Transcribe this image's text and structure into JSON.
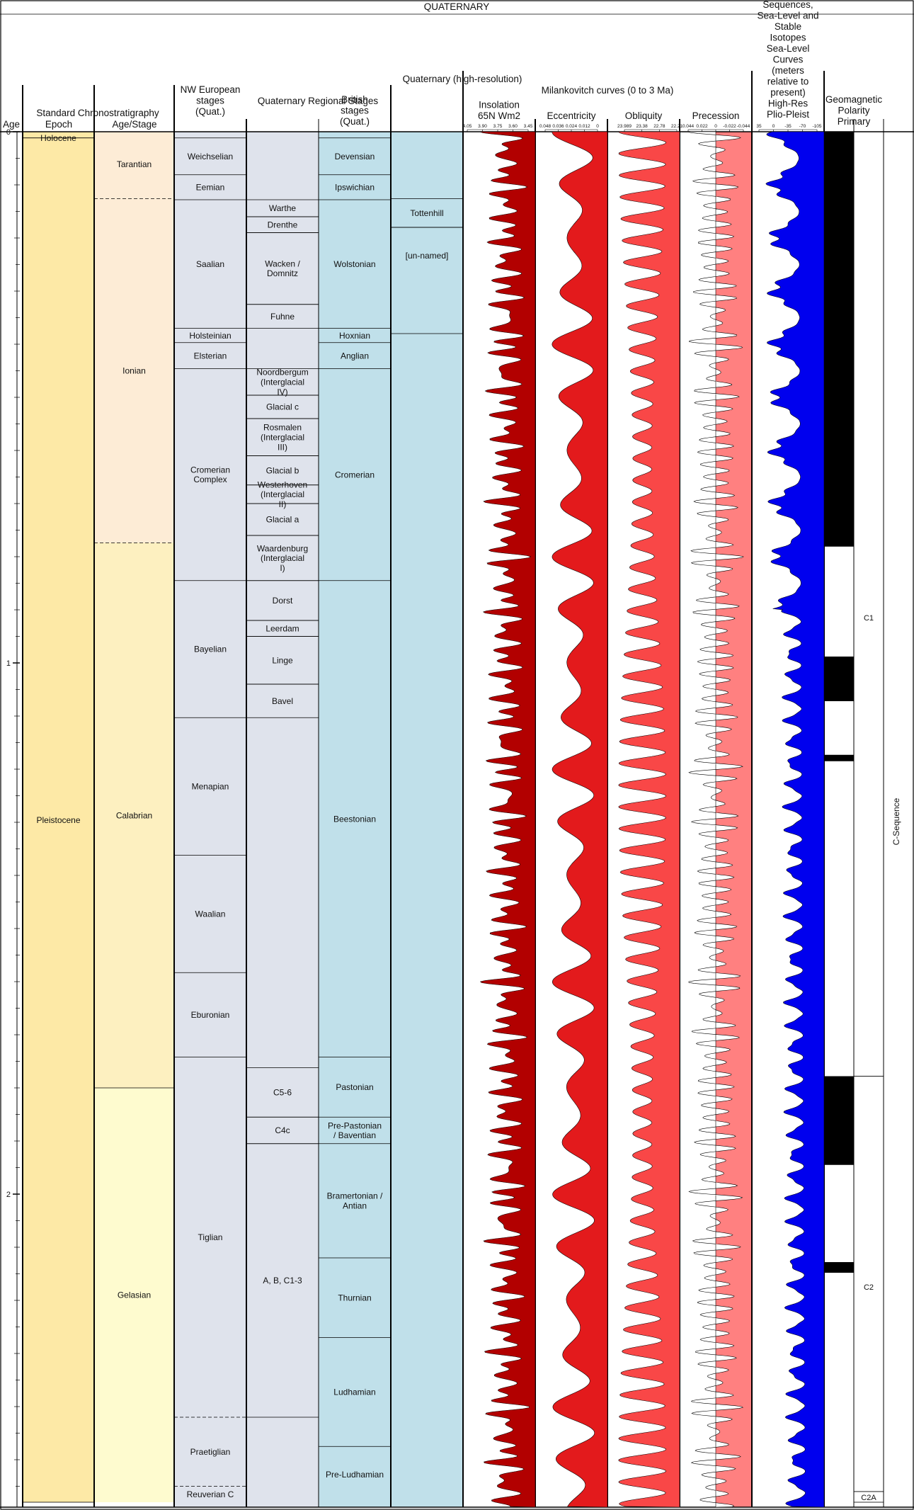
{
  "title": "QUATERNARY",
  "headers": {
    "age": "Age",
    "std_chrono": "Standard Chronostratigraphy",
    "epoch": "Epoch",
    "age_stage": "Age/Stage",
    "nw_european": "NW European stages (Quat.)",
    "regional": "Quaternary Regional Stages",
    "british": "British stages (Quat.)",
    "hires": "Quaternary (high-resolution)",
    "milankovitch": "Milankovitch curves (0 to 3 Ma)",
    "insolation": "Insolation 65N Wm2",
    "eccentricity": "Eccentricity",
    "obliquity": "Obliquity",
    "precession": "Precession",
    "sealevel": "Sequences, Sea-Level and Stable Isotopes Sea-Level Curves (meters relative to present) High-Res Plio-Pleist",
    "geomag": "Geomagnetic Polarity Primary"
  },
  "age_ticks": [
    "0",
    "1",
    "2"
  ],
  "scale_ticks": {
    "insolation": [
      "4.05",
      "3.90",
      "3.75",
      "3.60",
      "3.45"
    ],
    "eccentricity": [
      "0.048",
      "0.036",
      "0.024",
      "0.012",
      "0"
    ],
    "obliquity": [
      "23.989",
      "23.38",
      "22.78",
      "22.21"
    ],
    "precession": [
      "0.044",
      "0.022",
      "0",
      "-0.022",
      "-0.044"
    ],
    "sealevel": [
      "35",
      "0",
      "-35",
      "-70",
      "-105"
    ]
  },
  "epochs": [
    {
      "name": "Holocene",
      "top": 0,
      "base": 0.0117
    },
    {
      "name": "Pleistocene",
      "top": 0.0117,
      "base": 2.58
    }
  ],
  "ages": [
    {
      "name": "Tarantian",
      "top": 0,
      "base": 0.126,
      "color": "#fdecd6"
    },
    {
      "name": "Ionian",
      "top": 0.126,
      "base": 0.774,
      "color": "#fdecd6"
    },
    {
      "name": "Calabrian",
      "top": 0.774,
      "base": 1.8,
      "color": "#fdf0c0"
    },
    {
      "name": "Gelasian",
      "top": 1.8,
      "base": 2.58,
      "color": "#fefbcf"
    }
  ],
  "nw_stages": [
    {
      "name": "",
      "top": 0,
      "base": 0.0117
    },
    {
      "name": "Weichselian",
      "top": 0.0117,
      "base": 0.081
    },
    {
      "name": "Eemian",
      "top": 0.081,
      "base": 0.128
    },
    {
      "name": "Saalian",
      "top": 0.128,
      "base": 0.37
    },
    {
      "name": "Holsteinian",
      "top": 0.37,
      "base": 0.397
    },
    {
      "name": "Elsterian",
      "top": 0.397,
      "base": 0.446
    },
    {
      "name": "Cromerian Complex",
      "top": 0.446,
      "base": 0.845
    },
    {
      "name": "Bayelian",
      "top": 0.845,
      "base": 1.103
    },
    {
      "name": "Menapian",
      "top": 1.103,
      "base": 1.362
    },
    {
      "name": "Waalian",
      "top": 1.362,
      "base": 1.583
    },
    {
      "name": "Eburonian",
      "top": 1.583,
      "base": 1.742
    },
    {
      "name": "Tiglian",
      "top": 1.742,
      "base": 2.42
    },
    {
      "name": "Praetiglian",
      "top": 2.42,
      "base": 2.55
    },
    {
      "name": "Reuverian C",
      "top": 2.55,
      "base": 2.58
    }
  ],
  "regional_substages": [
    {
      "name": "Warthe",
      "top": 0.128,
      "base": 0.16
    },
    {
      "name": "Drenthe",
      "top": 0.16,
      "base": 0.19
    },
    {
      "name": "Wacken / Domnitz",
      "top": 0.19,
      "base": 0.325
    },
    {
      "name": "Fuhne",
      "top": 0.325,
      "base": 0.37
    },
    {
      "name": "Noordbergum (Interglacial IV)",
      "top": 0.446,
      "base": 0.496
    },
    {
      "name": "Glacial c",
      "top": 0.496,
      "base": 0.54
    },
    {
      "name": "Rosmalen (Interglacial III)",
      "top": 0.54,
      "base": 0.61
    },
    {
      "name": "Glacial b",
      "top": 0.61,
      "base": 0.665
    },
    {
      "name": "Westerhoven (Interglacial II)",
      "top": 0.665,
      "base": 0.7
    },
    {
      "name": "Glacial a",
      "top": 0.7,
      "base": 0.76
    },
    {
      "name": "Waardenburg (Interglacial I)",
      "top": 0.76,
      "base": 0.845
    },
    {
      "name": "Dorst",
      "top": 0.845,
      "base": 0.92
    },
    {
      "name": "Leerdam",
      "top": 0.92,
      "base": 0.95
    },
    {
      "name": "Linge",
      "top": 0.95,
      "base": 1.04
    },
    {
      "name": "Bavel",
      "top": 1.04,
      "base": 1.103
    },
    {
      "name": "C5-6",
      "top": 1.762,
      "base": 1.855
    },
    {
      "name": "C4c",
      "top": 1.855,
      "base": 1.905
    },
    {
      "name": "A, B, C1-3",
      "top": 1.905,
      "base": 2.42
    }
  ],
  "british_stages": [
    {
      "name": "",
      "top": 0,
      "base": 0.0117
    },
    {
      "name": "Devensian",
      "top": 0.0117,
      "base": 0.081
    },
    {
      "name": "Ipswichian",
      "top": 0.081,
      "base": 0.128
    },
    {
      "name": "Wolstonian",
      "top": 0.128,
      "base": 0.37
    },
    {
      "name": "Hoxnian",
      "top": 0.37,
      "base": 0.397
    },
    {
      "name": "Anglian",
      "top": 0.397,
      "base": 0.446
    },
    {
      "name": "Cromerian",
      "top": 0.446,
      "base": 0.845
    },
    {
      "name": "Beestonian",
      "top": 0.845,
      "base": 1.742
    },
    {
      "name": "Pastonian",
      "top": 1.742,
      "base": 1.855
    },
    {
      "name": "Pre-Pastonian / Baventian",
      "top": 1.855,
      "base": 1.905
    },
    {
      "name": "Bramertonian / Antian",
      "top": 1.905,
      "base": 2.12
    },
    {
      "name": "Thurnian",
      "top": 2.12,
      "base": 2.27
    },
    {
      "name": "Ludhamian",
      "top": 2.27,
      "base": 2.475
    },
    {
      "name": "Pre-Ludhamian",
      "top": 2.475,
      "base": 2.58
    }
  ],
  "hires_stages": [
    {
      "name": "Tottenhill",
      "top": 0.126,
      "base": 0.18
    },
    {
      "name": "[un-named]",
      "top": 0.18,
      "base": 0.38
    }
  ],
  "polarity": [
    {
      "top": 0,
      "base": 0.781,
      "normal": true
    },
    {
      "top": 0.781,
      "base": 0.988,
      "normal": false
    },
    {
      "top": 0.988,
      "base": 1.072,
      "normal": true
    },
    {
      "top": 1.072,
      "base": 1.173,
      "normal": false
    },
    {
      "top": 1.173,
      "base": 1.185,
      "normal": true
    },
    {
      "top": 1.185,
      "base": 1.778,
      "normal": false
    },
    {
      "top": 1.778,
      "base": 1.945,
      "normal": true
    },
    {
      "top": 1.945,
      "base": 2.128,
      "normal": false
    },
    {
      "top": 2.128,
      "base": 2.148,
      "normal": true
    },
    {
      "top": 2.148,
      "base": 2.581,
      "normal": false
    }
  ],
  "chrons": [
    {
      "name": "C1",
      "top": 0,
      "base": 1.778
    },
    {
      "name": "C2",
      "top": 1.778,
      "base": 2.56
    },
    {
      "name": "C2A",
      "top": 2.56,
      "base": 2.58
    }
  ],
  "sequence_label": "C-Sequence",
  "colors": {
    "epoch": "#fde9a6",
    "nw": "#dfe3ec",
    "british": "#c0e0ea",
    "insolation": "#b20000",
    "eccentricity": "#e31a1c",
    "obliquity": "#f94747",
    "precession": "#ff8080",
    "sealevel": "#0000ee",
    "normal": "#000000"
  }
}
